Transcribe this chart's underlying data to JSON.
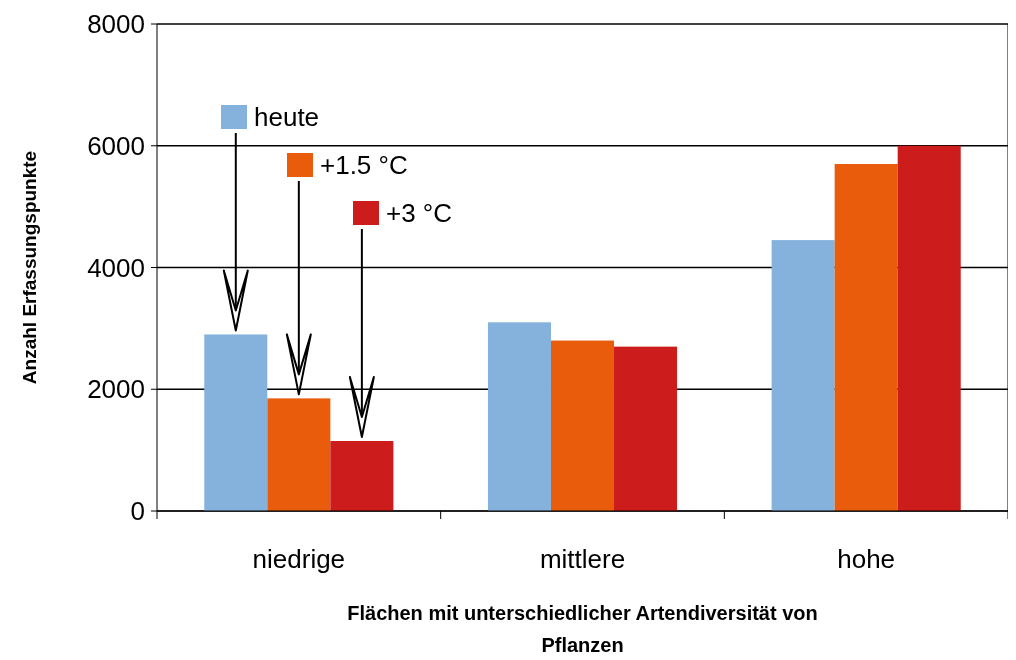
{
  "chart_data": {
    "type": "bar",
    "xlabel": "Flächen mit unterschiedlicher Artendiversität von Pflanzen",
    "ylabel": "Anzahl Erfassungspunkte",
    "categories": [
      "niedrige",
      "mittlere",
      "hohe"
    ],
    "series": [
      {
        "name": "heute",
        "color": "#84b2dc",
        "values": [
          2900,
          3100,
          4450
        ]
      },
      {
        "name": "+1.5 °C",
        "color": "#e85c0c",
        "values": [
          1850,
          2800,
          5700
        ]
      },
      {
        "name": "+3 °C",
        "color": "#cc1c1c",
        "values": [
          1150,
          2700,
          6000
        ]
      }
    ],
    "ylim": [
      0,
      8000
    ],
    "yticks": [
      0,
      2000,
      4000,
      6000,
      8000
    ],
    "grid": "y",
    "legend": "top left"
  }
}
